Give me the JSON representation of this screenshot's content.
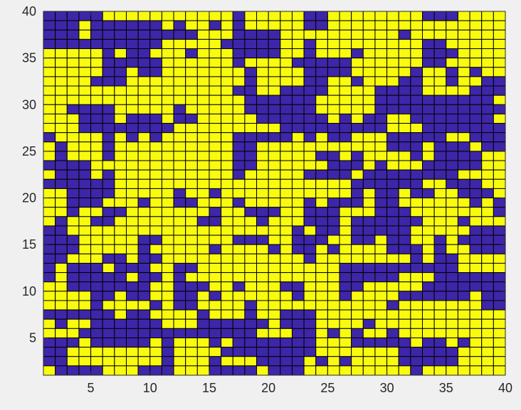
{
  "chart_data": {
    "type": "heatmap",
    "title": "",
    "xlabel": "",
    "ylabel": "",
    "xlim": [
      1,
      40
    ],
    "ylim": [
      1,
      40
    ],
    "x_ticks": [
      "5",
      "10",
      "15",
      "20",
      "25",
      "30",
      "35",
      "40"
    ],
    "y_ticks": [
      "5",
      "10",
      "15",
      "20",
      "25",
      "30",
      "35",
      "40"
    ],
    "colormap": {
      "0": "#3e26a8",
      "1": "#f9fb0e"
    },
    "edge_color": "#000000",
    "z_rows_top_to_bottom": [
      "000001111111111101111100111111110001111",
      "000100000010110101111100111111111111111",
      "000100000000011100001111111111011111111",
      "000000000011111000001101111111110011111",
      "111110100111011100001101110111110001111",
      "111110000011111101111000001111110011111",
      "111110010011111110111100001111101101011",
      "111100011111111110111100110111001101100",
      "111111111111111100110000111100001111000",
      "111111111111111110000001111100000000001",
      "110000111110111110000001111100000000000",
      "111000100010011111000000101001100000001",
      "111000000001111111110000000001110000000",
      "011110101011111100000101001110000011000",
      "101110111111111100111111111110001000100",
      "101110111111111100111110010111101000011",
      "000011111111111100111111000101110000011",
      "100010111111111101111100001000000001111",
      "000000111111111111111111110000001100011",
      "110000111110110111111111110100100110001",
      "110001110110011101111101000100111111010",
      "110110011111110110001100011100011111110",
      "101100111111100111011100010000001110111",
      "001111111111111111111010010000011111000",
      "000111110011111100011000110010011010000",
      "000111110111110111101001011110001011000",
      "001110010011111111111101111111101001111",
      "010001000110011111111111100000000001111",
      "010000010010111111111111100000111000000",
      "110000000110001101110011100111110000000",
      "111100100110010111111011101111000000100",
      "111101111010011110111111111110111111100",
      "000000100111101110110001111111111111111",
      "101100000011100000010001111011111111111",
      "111000000000000000111001010110111111111",
      "000100000101110100000001110000010010111",
      "001111111101111000000001111111000001111",
      "001111111101110111000010101111000001111",
      "100001110001110000100011111111101111111"
    ]
  }
}
